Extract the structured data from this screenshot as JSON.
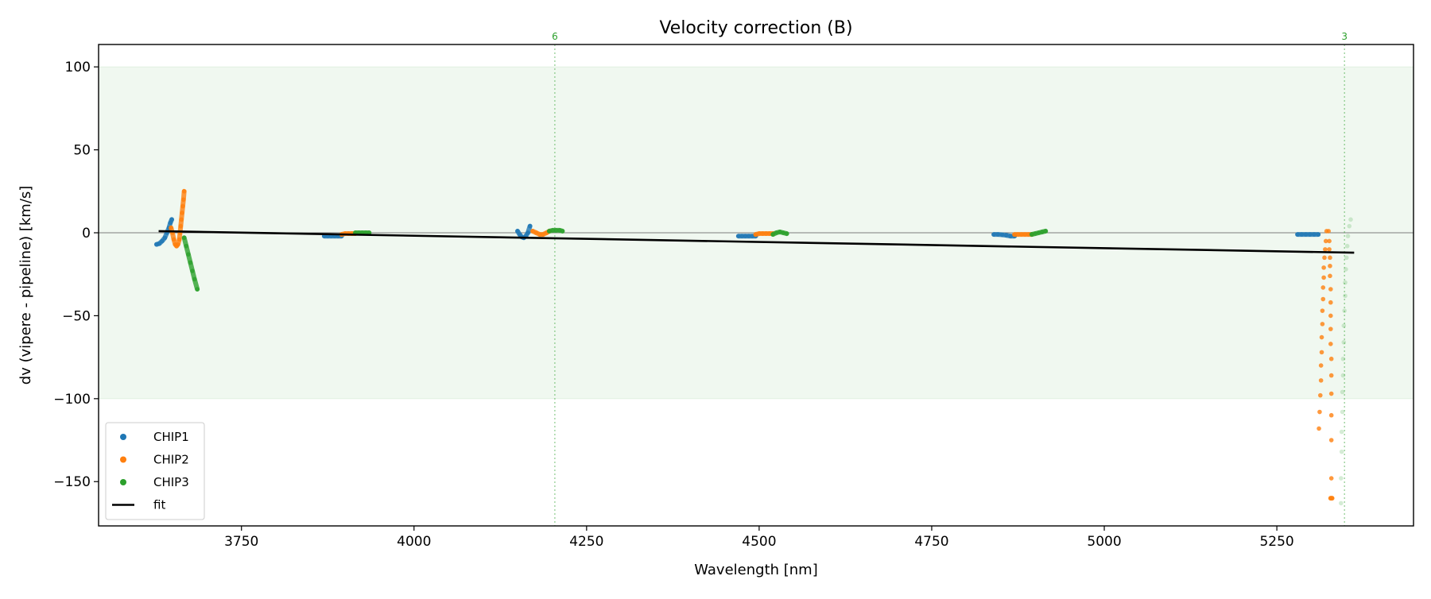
{
  "chart_data": {
    "type": "scatter",
    "title": "Velocity correction (B)",
    "xlabel": "Wavelength [nm]",
    "ylabel": "dv (vipere - pipeline) [km/s]",
    "xlim": [
      3543,
      5448
    ],
    "ylim": [
      -176.7,
      113.5
    ],
    "xticks": [
      3750,
      4000,
      4250,
      4500,
      4750,
      5000,
      5250
    ],
    "yticks": [
      100,
      50,
      0,
      -50,
      -100,
      -150
    ],
    "grid": false,
    "shaded_band": {
      "ymin": -100,
      "ymax": 100,
      "color": "#2ca02c"
    },
    "zero_line": 0,
    "vlines": [
      {
        "x": 4204,
        "label": "6",
        "color": "#2ca02c"
      },
      {
        "x": 5348,
        "label": "3",
        "color": "#2ca02c"
      }
    ],
    "legend": {
      "placement": "lower-left",
      "entries": [
        "CHIP1",
        "CHIP2",
        "CHIP3",
        "fit"
      ]
    },
    "series": [
      {
        "name": "CHIP1",
        "color": "#1f77b4",
        "segments": [
          {
            "x": [
              3627,
              3631,
              3635,
              3639,
              3642,
              3645,
              3647,
              3649
            ],
            "y": [
              -7,
              -6.5,
              -5,
              -3,
              0,
              3,
              6,
              8
            ]
          },
          {
            "x": [
              3870,
              3875,
              3880,
              3885,
              3890,
              3895
            ],
            "y": [
              -2,
              -2,
              -2,
              -2,
              -2,
              -2
            ]
          },
          {
            "x": [
              4150,
              4153,
              4156,
              4159,
              4162,
              4165,
              4168
            ],
            "y": [
              1,
              -1,
              -2.5,
              -3,
              -2,
              0,
              4
            ]
          },
          {
            "x": [
              4470,
              4475,
              4480,
              4485,
              4490,
              4495
            ],
            "y": [
              -2,
              -2,
              -2,
              -2,
              -2,
              -2
            ]
          },
          {
            "x": [
              4840,
              4846,
              4852,
              4858,
              4864,
              4870
            ],
            "y": [
              -1,
              -1,
              -1.2,
              -1.5,
              -2,
              -2
            ]
          },
          {
            "x": [
              5280,
              5286,
              5292,
              5298,
              5304,
              5310
            ],
            "y": [
              -1,
              -1,
              -1,
              -1,
              -1,
              -1
            ]
          }
        ]
      },
      {
        "name": "CHIP2",
        "color": "#ff7f0e",
        "segments": [
          {
            "x": [
              3648,
              3650,
              3652,
              3654,
              3656,
              3658,
              3660,
              3661,
              3662,
              3663,
              3664,
              3665,
              3666,
              3667
            ],
            "y": [
              3,
              0,
              -4,
              -7,
              -8,
              -7,
              -4,
              0,
              4,
              8,
              12,
              16,
              20,
              25
            ]
          },
          {
            "x": [
              3895,
              3900,
              3905,
              3910,
              3915
            ],
            "y": [
              -1,
              -0.5,
              -0.5,
              -0.5,
              -0.5
            ]
          },
          {
            "x": [
              4172,
              4177,
              4182,
              4187,
              4192,
              4196
            ],
            "y": [
              1,
              0,
              -1,
              -1,
              0,
              1
            ]
          },
          {
            "x": [
              4495,
              4500,
              4505,
              4510,
              4515,
              4520
            ],
            "y": [
              -1,
              -0.5,
              -0.5,
              -0.5,
              -0.5,
              -0.5
            ]
          },
          {
            "x": [
              4870,
              4875,
              4880,
              4885,
              4890,
              4895
            ],
            "y": [
              -1,
              -1,
              -1,
              -1,
              -1,
              -1
            ]
          },
          {
            "x": [
              5322,
              5321,
              5320,
              5319,
              5318,
              5318,
              5317,
              5317,
              5316,
              5316,
              5315,
              5315,
              5314,
              5314,
              5313,
              5312,
              5311
            ],
            "y": [
              1,
              -5,
              -10,
              -15,
              -21,
              -27,
              -33,
              -40,
              -47,
              -55,
              -63,
              -72,
              -80,
              -89,
              -98,
              -108,
              -118
            ]
          },
          {
            "x": [
              5325,
              5326,
              5326,
              5327,
              5327,
              5327,
              5328,
              5328,
              5328,
              5328,
              5328,
              5329,
              5329,
              5329,
              5329,
              5329,
              5329
            ],
            "y": [
              1,
              -5,
              -10,
              -15,
              -20,
              -26,
              -34,
              -42,
              -50,
              -58,
              -67,
              -76,
              -86,
              -97,
              -110,
              -125,
              -148
            ]
          },
          {
            "x": [
              5328,
              5330
            ],
            "y": [
              -160,
              -160
            ]
          }
        ]
      },
      {
        "name": "CHIP3",
        "color": "#2ca02c",
        "segments": [
          {
            "x": [
              3667,
              3670,
              3673,
              3676,
              3679,
              3682,
              3686
            ],
            "y": [
              -3,
              -8,
              -13,
              -18,
              -23,
              -28,
              -34
            ]
          },
          {
            "x": [
              3915,
              3920,
              3925,
              3930,
              3935
            ],
            "y": [
              0,
              0,
              0,
              0,
              0
            ]
          },
          {
            "x": [
              4196,
              4201,
              4206,
              4211,
              4215
            ],
            "y": [
              1,
              1.5,
              1.5,
              1.5,
              1
            ]
          },
          {
            "x": [
              4520,
              4525,
              4530,
              4535,
              4540
            ],
            "y": [
              -1,
              0,
              0.5,
              0,
              -0.5
            ]
          },
          {
            "x": [
              4895,
              4900,
              4905,
              4910,
              4915
            ],
            "y": [
              -1,
              -0.5,
              0,
              0.5,
              1
            ]
          },
          {
            "x": [
              5357,
              5355,
              5353,
              5352,
              5351,
              5350,
              5349,
              5349,
              5348,
              5347,
              5347,
              5346,
              5346,
              5345,
              5345,
              5344,
              5344,
              5343,
              5343
            ],
            "y": [
              8,
              4,
              -2,
              -8,
              -15,
              -22,
              -30,
              -38,
              -47,
              -56,
              -66,
              -76,
              -86,
              -96,
              -108,
              -120,
              -132,
              -148,
              -163
            ],
            "faded": true
          }
        ]
      }
    ],
    "fit": {
      "name": "fit",
      "color": "#000000",
      "x": [
        3630,
        5362
      ],
      "y": [
        1,
        -12
      ]
    }
  }
}
